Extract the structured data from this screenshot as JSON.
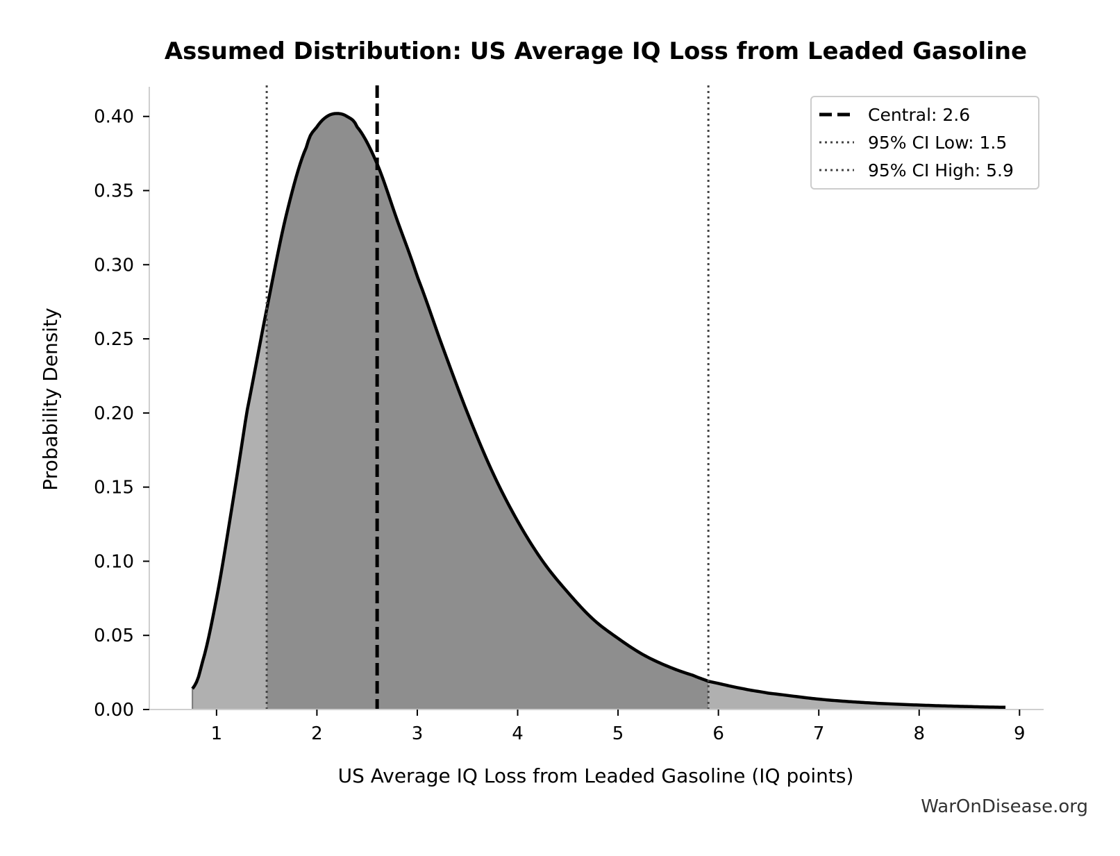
{
  "chart_data": {
    "type": "area",
    "title": "Assumed Distribution: US Average IQ Loss from Leaded Gasoline",
    "xlabel": "US Average IQ Loss from Leaded Gasoline (IQ points)",
    "ylabel": "Probability Density",
    "xlim": [
      0.33,
      9.24
    ],
    "ylim": [
      0.0,
      0.42
    ],
    "x_ticks": [
      1,
      2,
      3,
      4,
      5,
      6,
      7,
      8,
      9
    ],
    "y_ticks": [
      0.0,
      0.05,
      0.1,
      0.15,
      0.2,
      0.25,
      0.3,
      0.35,
      0.4
    ],
    "y_tick_labels": [
      "0.00",
      "0.05",
      "0.10",
      "0.15",
      "0.20",
      "0.25",
      "0.30",
      "0.35",
      "0.40"
    ],
    "series": [
      {
        "kind": "density-curve",
        "x": [
          0.76,
          0.85,
          1.0,
          1.15,
          1.3,
          1.5,
          1.7,
          1.9,
          2.0,
          2.1,
          2.2,
          2.3,
          2.4,
          2.6,
          2.8,
          3.0,
          3.25,
          3.5,
          3.75,
          4.0,
          4.25,
          4.5,
          4.75,
          5.0,
          5.25,
          5.5,
          5.75,
          5.9,
          6.25,
          6.5,
          7.0,
          7.5,
          8.0,
          8.5,
          8.86
        ],
        "y": [
          0.014,
          0.03,
          0.075,
          0.135,
          0.2,
          0.27,
          0.335,
          0.38,
          0.393,
          0.4,
          0.402,
          0.4,
          0.393,
          0.368,
          0.33,
          0.292,
          0.245,
          0.2,
          0.16,
          0.127,
          0.1,
          0.079,
          0.061,
          0.048,
          0.037,
          0.029,
          0.023,
          0.019,
          0.014,
          0.011,
          0.007,
          0.0045,
          0.003,
          0.002,
          0.0015
        ]
      }
    ],
    "shaded_regions": [
      {
        "from": 0.76,
        "to": 1.5,
        "color": "#b0b0b0"
      },
      {
        "from": 1.5,
        "to": 5.9,
        "color": "#8e8e8e"
      },
      {
        "from": 5.9,
        "to": 8.86,
        "color": "#b0b0b0"
      }
    ],
    "vlines": [
      {
        "x": 2.6,
        "style": "dashed",
        "label": "Central: 2.6",
        "color": "#000000"
      },
      {
        "x": 1.5,
        "style": "dotted",
        "label": "95% CI Low: 1.5",
        "color": "#444444"
      },
      {
        "x": 5.9,
        "style": "dotted",
        "label": "95% CI High: 5.9",
        "color": "#444444"
      }
    ],
    "legend_position": "top-right",
    "grid": false
  },
  "watermark": "WarOnDisease.org"
}
